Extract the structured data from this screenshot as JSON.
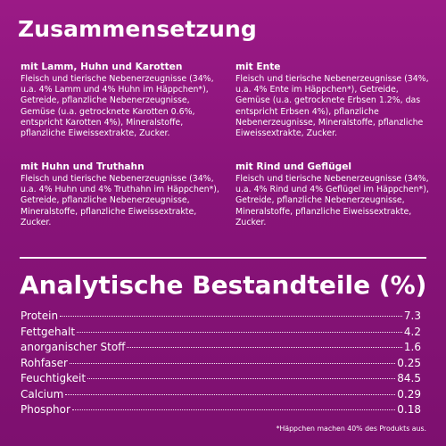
{
  "composition": {
    "title": "Zusammensetzung",
    "blocks": [
      {
        "title": "mit Lamm, Huhn und Karotten",
        "text": "Fleisch und tierische Nebenerzeugnisse (34%, u.a. 4% Lamm und 4% Huhn im Häppchen*), Getreide, pflanzliche Nebenerzeugnisse, Gemüse (u.a. getrocknete Karotten 0.6%, entspricht Karotten 4%), Mineralstoffe, pflanzliche Eiweissextrakte, Zucker."
      },
      {
        "title": "mit Ente",
        "text": "Fleisch und tierische Nebenerzeugnisse (34%, u.a. 4% Ente im Häppchen*), Getreide, Gemüse (u.a. getrocknete Erbsen 1.2%, das entspricht Erbsen 4%), pflanzliche Nebenerzeugnisse, Mineralstoffe, pflanzliche Eiweissextrakte, Zucker."
      },
      {
        "title": "mit Huhn und Truthahn",
        "text": "Fleisch und tierische Nebenerzeugnisse (34%, u.a. 4% Huhn und 4% Truthahn im Häppchen*), Getreide, pflanzliche Nebenerzeugnisse, Mineralstoffe, pflanzliche Eiweissextrakte, Zucker."
      },
      {
        "title": "mit Rind und Geflügel",
        "text": "Fleisch und tierische Nebenerzeugnisse (34%, u.a. 4% Rind und 4% Geflügel im Häppchen*), Getreide, pflanzliche Nebenerzeugnisse, Mineralstoffe, pflanzliche Eiweissextrakte, Zucker."
      }
    ]
  },
  "analysis": {
    "title": "Analytische Bestandteile (%)",
    "rows": [
      {
        "label": "Protein",
        "value": "7.3"
      },
      {
        "label": "Fettgehalt",
        "value": "4.2"
      },
      {
        "label": "anorganischer Stoff",
        "value": "1.6"
      },
      {
        "label": "Rohfaser",
        "value": "0.25"
      },
      {
        "label": "Feuchtigkeit",
        "value": "84.5"
      },
      {
        "label": "Calcium",
        "value": "0.29"
      },
      {
        "label": "Phosphor",
        "value": "0.18"
      }
    ]
  },
  "footnote": "*Häppchen machen 40% des Produkts aus.",
  "colors": {
    "background": "#8a147a",
    "text": "#ffffff"
  }
}
